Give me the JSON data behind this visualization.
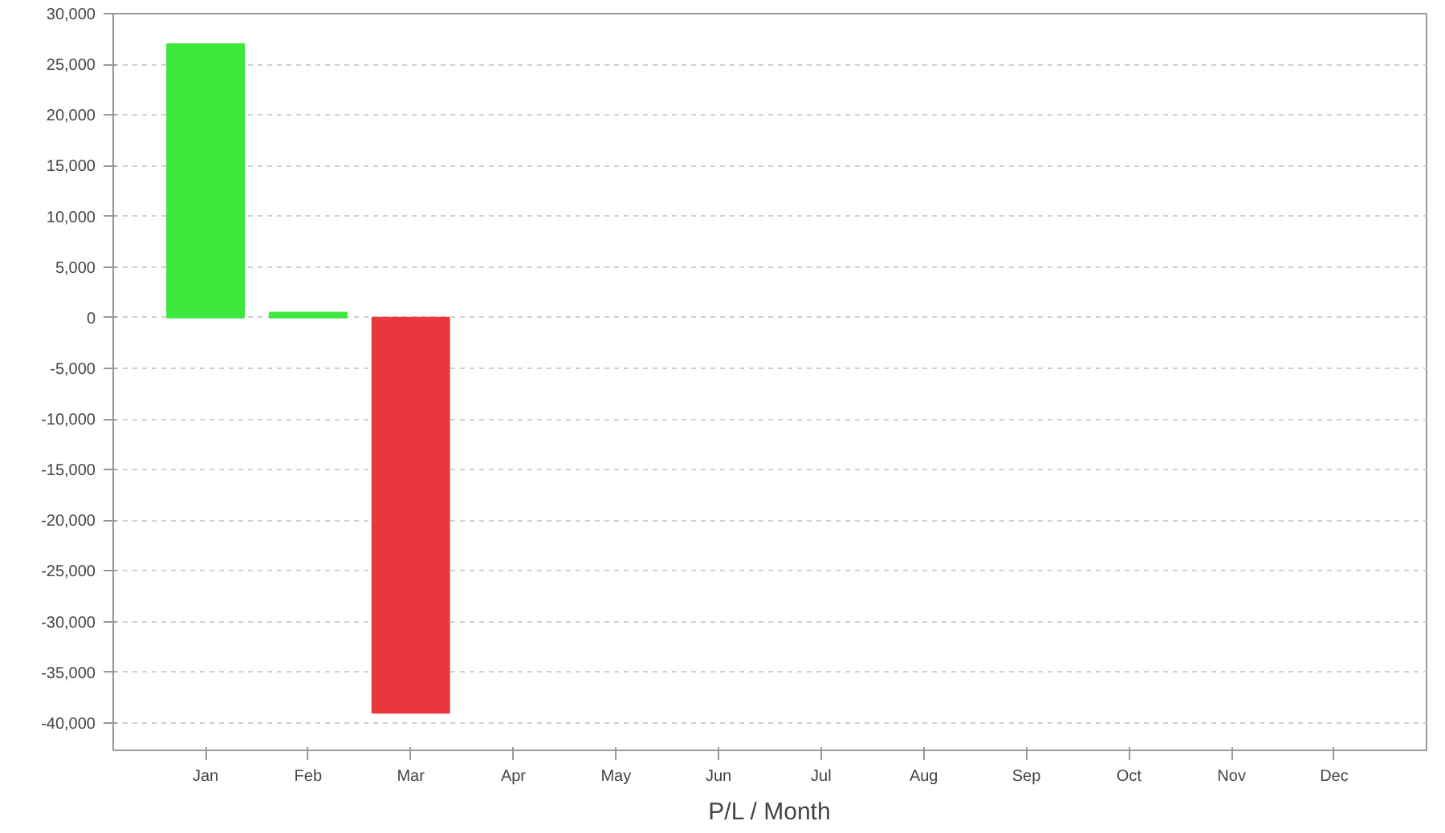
{
  "chart_data": {
    "type": "bar",
    "xlabel": "P/L / Month",
    "categories": [
      "Jan",
      "Feb",
      "Mar",
      "Apr",
      "May",
      "Jun",
      "Jul",
      "Aug",
      "Sep",
      "Oct",
      "Nov",
      "Dec"
    ],
    "values": [
      27000,
      500,
      -39000,
      null,
      null,
      null,
      null,
      null,
      null,
      null,
      null,
      null
    ],
    "colors": [
      "#3de83d",
      "#3de83d",
      "#e8383d",
      "#3de83d",
      "#3de83d",
      "#3de83d",
      "#3de83d",
      "#3de83d",
      "#3de83d",
      "#3de83d",
      "#3de83d",
      "#3de83d"
    ],
    "ylim": [
      -42700,
      30000
    ],
    "yticks": [
      {
        "value": 30000,
        "label": "30,000"
      },
      {
        "value": 25000,
        "label": "25,000"
      },
      {
        "value": 20000,
        "label": "20,000"
      },
      {
        "value": 15000,
        "label": "15,000"
      },
      {
        "value": 10000,
        "label": "10,000"
      },
      {
        "value": 5000,
        "label": "5,000"
      },
      0,
      {
        "value": -5000,
        "label": "-5,000"
      },
      {
        "value": -10000,
        "label": "-10,000"
      },
      {
        "value": -15000,
        "label": "-15,000"
      },
      {
        "value": -20000,
        "label": "-20,000"
      },
      {
        "value": -25000,
        "label": "-25,000"
      },
      {
        "value": -30000,
        "label": "-30,000"
      },
      {
        "value": -35000,
        "label": "-35,000"
      },
      {
        "value": -40000,
        "label": "-40,000"
      }
    ],
    "grid": "y"
  }
}
